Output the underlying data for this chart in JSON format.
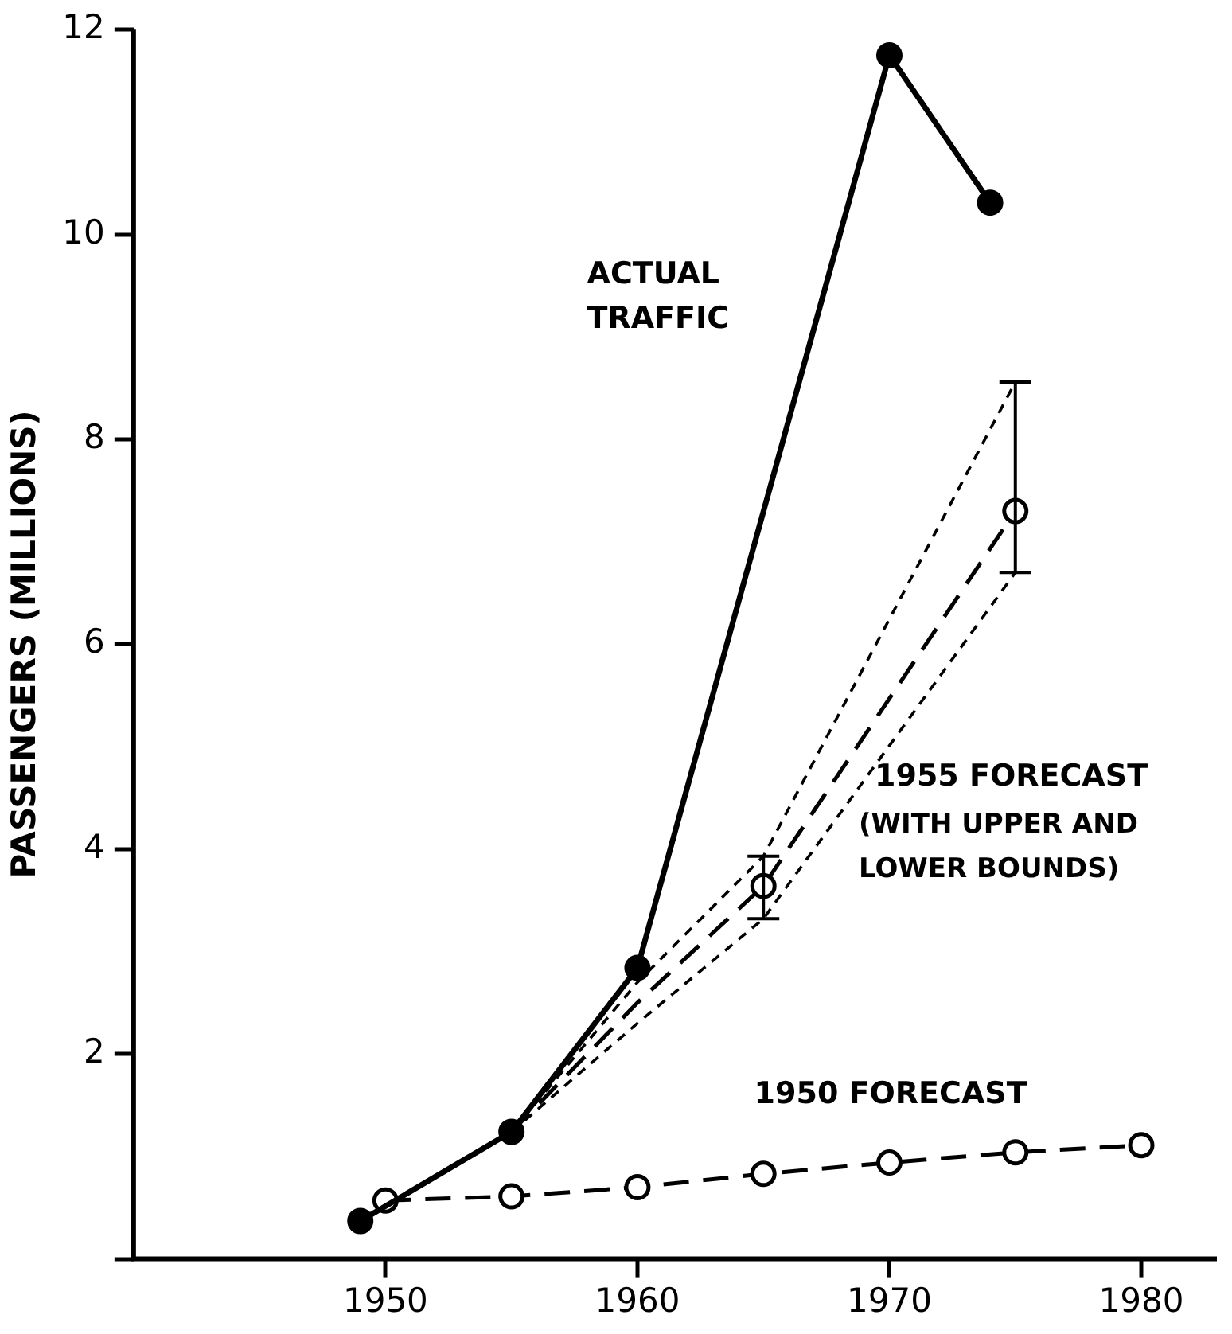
{
  "chart_data": {
    "type": "line",
    "ylabel": "PASSENGERS (MILLIONS)",
    "xlim": [
      1940,
      1983
    ],
    "xticks": [
      1950,
      1960,
      1970,
      1980
    ],
    "ylim": [
      0,
      12
    ],
    "yticks": [
      {
        "value": 0,
        "label": null
      },
      2,
      4,
      6,
      8,
      10,
      12
    ],
    "grid": false,
    "legend": false,
    "marker": "circle",
    "series": [
      {
        "name": "ACTUAL TRAFFIC",
        "color": "#000000",
        "line_style": "solid",
        "x": [
          1949,
          1955,
          1960,
          1970,
          1974
        ],
        "values": [
          0.37,
          1.24,
          2.84,
          11.75,
          10.31
        ]
      },
      {
        "name": "1955 FORECAST",
        "color": "#000000",
        "line_style": "dashed",
        "x": [
          1955,
          1960,
          1965,
          1975
        ],
        "values": [
          1.24,
          2.5,
          3.64,
          7.3
        ],
        "errors": [
          null,
          null,
          [
            3.32,
            3.93
          ],
          [
            6.7,
            8.56
          ]
        ]
      },
      {
        "color": "#000000",
        "line_style": "dotted",
        "marker": "none",
        "x": [
          1955,
          1960,
          1965,
          1975
        ],
        "values": [
          1.24,
          2.7,
          3.93,
          8.56
        ]
      },
      {
        "color": "#000000",
        "line_style": "dotted",
        "marker": "none",
        "x": [
          1955,
          1960,
          1965,
          1975
        ],
        "values": [
          1.24,
          2.3,
          3.32,
          6.7
        ]
      },
      {
        "name": "1950 FORECAST",
        "color": "#000000",
        "line_style": "dashed",
        "x": [
          1950,
          1955,
          1960,
          1965,
          1970,
          1975,
          1980
        ],
        "values": [
          0.57,
          0.61,
          0.7,
          0.83,
          0.94,
          1.04,
          1.11
        ]
      }
    ],
    "annotations": [
      "(WITH UPPER AND LOWER BOUNDS)"
    ]
  }
}
